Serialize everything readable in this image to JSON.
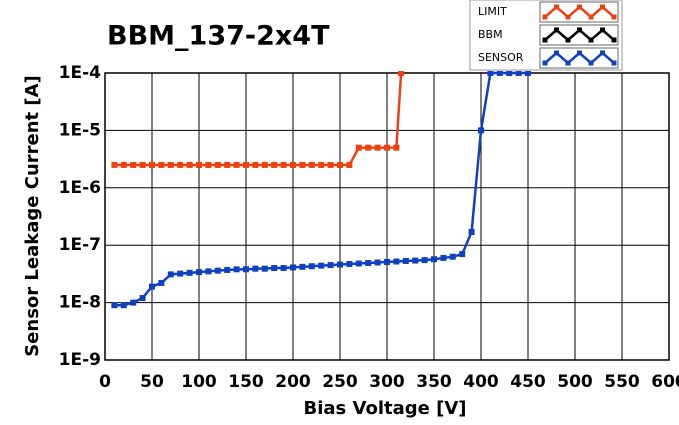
{
  "chart_data": {
    "type": "line",
    "title": "BBM_137-2x4T",
    "x_label": "Bias Voltage [V]",
    "y_label": "Sensor Leakage Current [A]",
    "xlim": [
      0,
      600
    ],
    "xticks": [
      0,
      50,
      100,
      150,
      200,
      250,
      300,
      350,
      400,
      450,
      500,
      550,
      600
    ],
    "ylim": [
      1e-09,
      0.0001
    ],
    "log_y": true,
    "grid": true,
    "legend": "top-right",
    "yticks": [
      {
        "value": 1e-09,
        "label": "1E-9"
      },
      {
        "value": 1e-08,
        "label": "1E-8"
      },
      {
        "value": 1e-07,
        "label": "1E-7"
      },
      {
        "value": 1e-06,
        "label": "1E-6"
      },
      {
        "value": 1e-05,
        "label": "1E-5"
      },
      {
        "value": 0.0001,
        "label": "1E-4"
      }
    ],
    "series": [
      {
        "name": "LIMIT",
        "color": "#f04010",
        "x": [
          10,
          20,
          30,
          40,
          50,
          60,
          70,
          80,
          90,
          100,
          110,
          120,
          130,
          140,
          150,
          160,
          170,
          180,
          190,
          200,
          210,
          220,
          230,
          240,
          250,
          260,
          270,
          280,
          290,
          300,
          310,
          315
        ],
        "values": [
          2.5e-06,
          2.5e-06,
          2.5e-06,
          2.5e-06,
          2.5e-06,
          2.5e-06,
          2.5e-06,
          2.5e-06,
          2.5e-06,
          2.5e-06,
          2.5e-06,
          2.5e-06,
          2.5e-06,
          2.5e-06,
          2.5e-06,
          2.5e-06,
          2.5e-06,
          2.5e-06,
          2.5e-06,
          2.5e-06,
          2.5e-06,
          2.5e-06,
          2.5e-06,
          2.5e-06,
          2.5e-06,
          2.5e-06,
          5e-06,
          5e-06,
          5e-06,
          5e-06,
          5e-06,
          0.0001
        ]
      },
      {
        "name": "BBM",
        "color": "#000000",
        "x": [],
        "values": []
      },
      {
        "name": "SENSOR",
        "color": "#1040c0",
        "x": [
          10,
          20,
          30,
          40,
          50,
          60,
          70,
          80,
          90,
          100,
          110,
          120,
          130,
          140,
          150,
          160,
          170,
          180,
          190,
          200,
          210,
          220,
          230,
          240,
          250,
          260,
          270,
          280,
          290,
          300,
          310,
          320,
          330,
          340,
          350,
          360,
          370,
          380,
          390,
          400,
          410,
          420,
          430,
          440,
          450
        ],
        "values": [
          9e-09,
          9e-09,
          1e-08,
          1.2e-08,
          1.9e-08,
          2.2e-08,
          3.1e-08,
          3.2e-08,
          3.3e-08,
          3.4e-08,
          3.5e-08,
          3.6e-08,
          3.7e-08,
          3.8e-08,
          3.8e-08,
          3.9e-08,
          3.9e-08,
          4e-08,
          4e-08,
          4.1e-08,
          4.2e-08,
          4.3e-08,
          4.4e-08,
          4.5e-08,
          4.6e-08,
          4.7e-08,
          4.8e-08,
          4.9e-08,
          5e-08,
          5.1e-08,
          5.2e-08,
          5.3e-08,
          5.4e-08,
          5.5e-08,
          5.7e-08,
          6e-08,
          6.3e-08,
          7e-08,
          1.7e-07,
          1e-05,
          0.0001,
          0.0001,
          0.0001,
          0.0001,
          0.0001
        ]
      }
    ]
  }
}
